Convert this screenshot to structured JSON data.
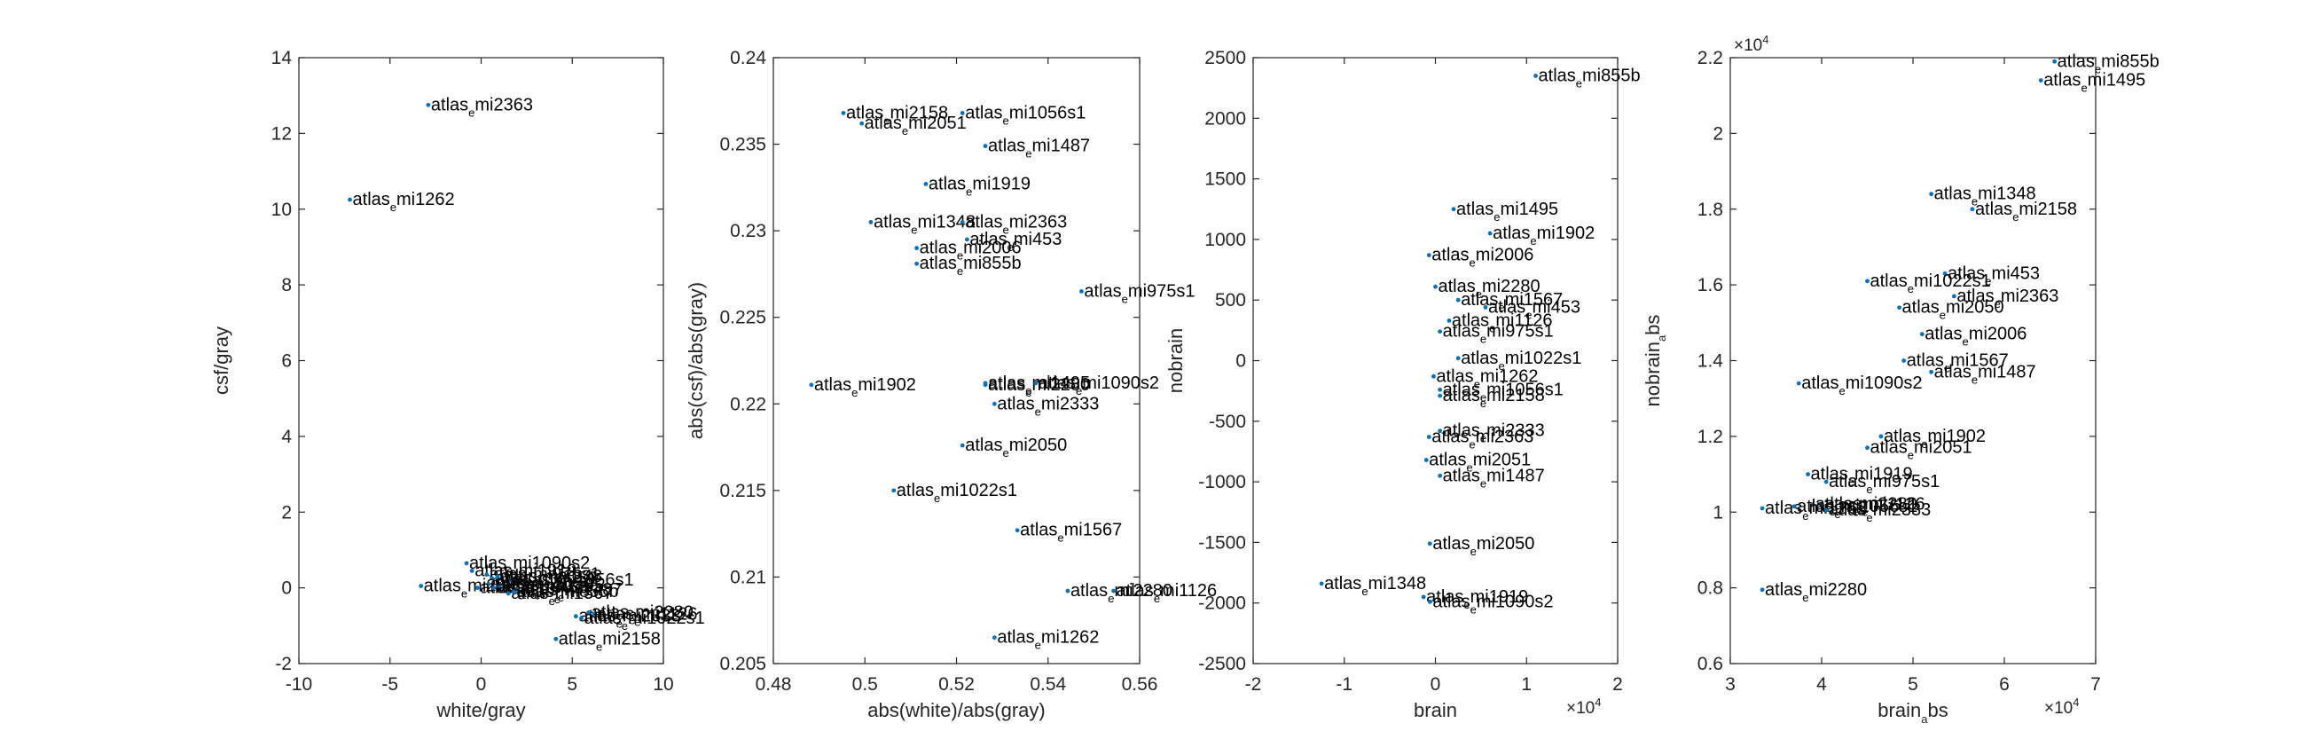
{
  "chart_data": [
    {
      "type": "scatter",
      "xlabel": "white/gray",
      "ylabel": "csf/gray",
      "xlim": [
        -10,
        10
      ],
      "ylim": [
        -2,
        14
      ],
      "xticks": [
        -10,
        -5,
        0,
        5,
        10
      ],
      "yticks": [
        -2,
        0,
        2,
        4,
        6,
        8,
        10,
        12,
        14
      ],
      "x_exponent": "",
      "color": "#0072BD",
      "points": [
        {
          "label": "atlas_emi2363",
          "x": -2.9,
          "y": 12.75
        },
        {
          "label": "atlas_emi1262",
          "x": -7.2,
          "y": 10.25
        },
        {
          "label": "atlas_emi1090s2",
          "x": -0.8,
          "y": 0.65
        },
        {
          "label": "atlas_emi1919",
          "x": -0.5,
          "y": 0.45
        },
        {
          "label": "atlas_emi975s1",
          "x": 0.3,
          "y": 0.35
        },
        {
          "label": "atlas_emi2051",
          "x": 0.6,
          "y": 0.25
        },
        {
          "label": "atlas_emi1348",
          "x": 0.9,
          "y": 0.3
        },
        {
          "label": "atlas_emi1056s1",
          "x": 1.6,
          "y": 0.2
        },
        {
          "label": "atlas_emi2050",
          "x": 0.4,
          "y": 0.1
        },
        {
          "label": "atlas_emi2006",
          "x": -3.3,
          "y": 0.05
        },
        {
          "label": "atlas_emi1902",
          "x": -0.2,
          "y": 0.0
        },
        {
          "label": "atlas_emi1495",
          "x": 1.0,
          "y": 0.05
        },
        {
          "label": "atlas_emi453",
          "x": 0.7,
          "y": 0.0
        },
        {
          "label": "atlas_emi1487",
          "x": 2.0,
          "y": -0.05
        },
        {
          "label": "atlas_emi1567",
          "x": 1.5,
          "y": -0.15
        },
        {
          "label": "atlas_emi855b",
          "x": 1.8,
          "y": -0.1
        },
        {
          "label": "atlas_emi2333",
          "x": 5.2,
          "y": -0.75
        },
        {
          "label": "atlas_emi2280",
          "x": 5.9,
          "y": -0.65
        },
        {
          "label": "atlas_emi1126",
          "x": 6.2,
          "y": -0.7
        },
        {
          "label": "atlas_emi1022s1",
          "x": 5.5,
          "y": -0.8
        },
        {
          "label": "atlas_emi2158",
          "x": 4.1,
          "y": -1.35
        }
      ]
    },
    {
      "type": "scatter",
      "xlabel": "abs(white)/abs(gray)",
      "ylabel": "abs(csf)/abs(gray)",
      "xlim": [
        0.48,
        0.56
      ],
      "ylim": [
        0.205,
        0.24
      ],
      "xticks": [
        0.48,
        0.5,
        0.52,
        0.54,
        0.56
      ],
      "yticks": [
        0.205,
        0.21,
        0.215,
        0.22,
        0.225,
        0.23,
        0.235,
        0.24
      ],
      "x_exponent": "",
      "color": "#0072BD",
      "points": [
        {
          "label": "atlas_emi2158",
          "x": 0.4953,
          "y": 0.2368
        },
        {
          "label": "atlas_emi1056s1",
          "x": 0.5213,
          "y": 0.2368
        },
        {
          "label": "atlas_emi2051",
          "x": 0.4993,
          "y": 0.2362
        },
        {
          "label": "atlas_emi1487",
          "x": 0.5263,
          "y": 0.2349
        },
        {
          "label": "atlas_emi1919",
          "x": 0.5133,
          "y": 0.2327
        },
        {
          "label": "atlas_emi1348",
          "x": 0.5013,
          "y": 0.2305
        },
        {
          "label": "atlas_emi2363",
          "x": 0.5213,
          "y": 0.2305
        },
        {
          "label": "atlas_emi453",
          "x": 0.5223,
          "y": 0.2295
        },
        {
          "label": "atlas_emi2006",
          "x": 0.5113,
          "y": 0.229
        },
        {
          "label": "atlas_emi855b",
          "x": 0.5113,
          "y": 0.2281
        },
        {
          "label": "atlas_emi975s1",
          "x": 0.5473,
          "y": 0.2265
        },
        {
          "label": "atlas_emi1902",
          "x": 0.4883,
          "y": 0.2211
        },
        {
          "label": "atlas_emi2280",
          "x": 0.5263,
          "y": 0.2211
        },
        {
          "label": "atlas_emi1495",
          "x": 0.5263,
          "y": 0.2212
        },
        {
          "label": "atlas_emi1090s2",
          "x": 0.5373,
          "y": 0.2212
        },
        {
          "label": "atlas_emi2333",
          "x": 0.5283,
          "y": 0.22
        },
        {
          "label": "atlas_emi2050",
          "x": 0.5213,
          "y": 0.2176
        },
        {
          "label": "atlas_emi1022s1",
          "x": 0.5063,
          "y": 0.215
        },
        {
          "label": "atlas_emi1567",
          "x": 0.5333,
          "y": 0.2127
        },
        {
          "label": "atlas_emi2280",
          "x": 0.5443,
          "y": 0.2092
        },
        {
          "label": "atlas_emi1126",
          "x": 0.5543,
          "y": 0.2092
        },
        {
          "label": "atlas_emi1262",
          "x": 0.5283,
          "y": 0.2065
        }
      ]
    },
    {
      "type": "scatter",
      "xlabel": "brain",
      "ylabel": "nobrain",
      "xlim": [
        -2,
        2
      ],
      "ylim": [
        -2500,
        2500
      ],
      "xticks": [
        -2,
        -1,
        0,
        1,
        2
      ],
      "yticks": [
        -2500,
        -2000,
        -1500,
        -1000,
        -500,
        0,
        500,
        1000,
        1500,
        2000,
        2500
      ],
      "x_exponent": "4",
      "color": "#0072BD",
      "points": [
        {
          "label": "atlas_emi855b",
          "x": 1.1,
          "y": 2350
        },
        {
          "label": "atlas_emi1495",
          "x": 0.2,
          "y": 1250
        },
        {
          "label": "atlas_emi1902",
          "x": 0.6,
          "y": 1050
        },
        {
          "label": "atlas_emi2006",
          "x": -0.07,
          "y": 870
        },
        {
          "label": "atlas_emi2280",
          "x": 0.0,
          "y": 610
        },
        {
          "label": "atlas_emi1567",
          "x": 0.25,
          "y": 500
        },
        {
          "label": "atlas_emi453",
          "x": 0.55,
          "y": 440
        },
        {
          "label": "atlas_emi1126",
          "x": 0.15,
          "y": 330
        },
        {
          "label": "atlas_emi975s1",
          "x": 0.05,
          "y": 240
        },
        {
          "label": "atlas_emi1022s1",
          "x": 0.25,
          "y": 20
        },
        {
          "label": "atlas_emi1262",
          "x": -0.02,
          "y": -130
        },
        {
          "label": "atlas_emi1056s1",
          "x": 0.05,
          "y": -240
        },
        {
          "label": "atlas_emi2158",
          "x": 0.05,
          "y": -290
        },
        {
          "label": "atlas_emi2333",
          "x": 0.05,
          "y": -580
        },
        {
          "label": "atlas_emi2363",
          "x": -0.07,
          "y": -630
        },
        {
          "label": "atlas_emi2051",
          "x": -0.1,
          "y": -820
        },
        {
          "label": "atlas_emi1487",
          "x": 0.05,
          "y": -950
        },
        {
          "label": "atlas_emi2050",
          "x": -0.06,
          "y": -1510
        },
        {
          "label": "atlas_emi1348",
          "x": -1.25,
          "y": -1840
        },
        {
          "label": "atlas_emi1919",
          "x": -0.13,
          "y": -1950
        },
        {
          "label": "atlas_emi1090s2",
          "x": -0.06,
          "y": -1990
        }
      ]
    },
    {
      "type": "scatter",
      "xlabel": "brain_abs",
      "ylabel": "nobrain_abs",
      "xlim": [
        3,
        7
      ],
      "ylim": [
        0.6,
        2.2
      ],
      "xticks": [
        3,
        4,
        5,
        6,
        7
      ],
      "yticks": [
        0.6,
        0.8,
        1,
        1.2,
        1.4,
        1.6,
        1.8,
        2,
        2.2
      ],
      "x_exponent": "4",
      "y_exponent": "4",
      "color": "#0072BD",
      "points": [
        {
          "label": "atlas_emi855b",
          "x": 6.55,
          "y": 2.19
        },
        {
          "label": "atlas_emi1495",
          "x": 6.4,
          "y": 2.14
        },
        {
          "label": "atlas_emi1348",
          "x": 5.2,
          "y": 1.84
        },
        {
          "label": "atlas_emi2158",
          "x": 5.65,
          "y": 1.8
        },
        {
          "label": "atlas_emi453",
          "x": 5.35,
          "y": 1.63
        },
        {
          "label": "atlas_emi1022s1",
          "x": 4.5,
          "y": 1.61
        },
        {
          "label": "atlas_emi2363",
          "x": 5.45,
          "y": 1.57
        },
        {
          "label": "atlas_emi2050",
          "x": 4.85,
          "y": 1.54
        },
        {
          "label": "atlas_emi2006",
          "x": 5.1,
          "y": 1.47
        },
        {
          "label": "atlas_emi1567",
          "x": 4.9,
          "y": 1.4
        },
        {
          "label": "atlas_emi1487",
          "x": 5.2,
          "y": 1.37
        },
        {
          "label": "atlas_emi1090s2",
          "x": 3.75,
          "y": 1.34
        },
        {
          "label": "atlas_emi1902",
          "x": 4.65,
          "y": 1.2
        },
        {
          "label": "atlas_emi2051",
          "x": 4.5,
          "y": 1.17
        },
        {
          "label": "atlas_emi1919",
          "x": 3.85,
          "y": 1.1
        },
        {
          "label": "atlas_emi975s1",
          "x": 4.05,
          "y": 1.08
        },
        {
          "label": "atlas_emi2280",
          "x": 3.9,
          "y": 1.02
        },
        {
          "label": "atlas_emi1126",
          "x": 4.0,
          "y": 1.02
        },
        {
          "label": "atlas_emi1262",
          "x": 3.35,
          "y": 1.01
        },
        {
          "label": "atlas_emi1056s1",
          "x": 3.7,
          "y": 1.015
        },
        {
          "label": "atlas_emi2333",
          "x": 4.05,
          "y": 1.005
        },
        {
          "label": "atlas_emi2280",
          "x": 3.35,
          "y": 0.795
        }
      ]
    }
  ]
}
